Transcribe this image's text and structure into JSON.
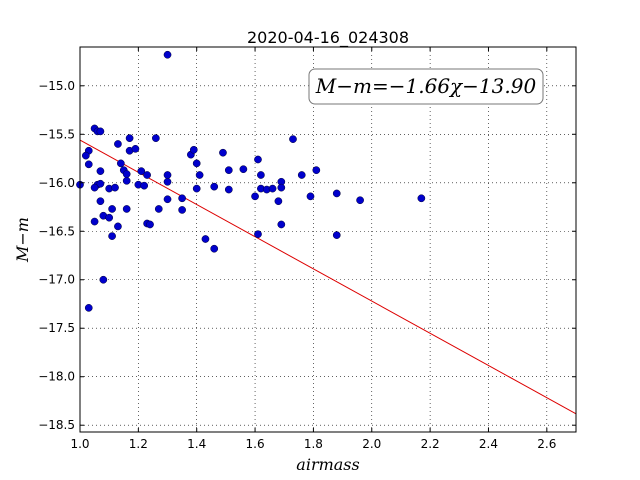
{
  "chart_data": {
    "type": "scatter",
    "title": "2020-04-16_024308",
    "xlabel": "airmass",
    "ylabel": "M−m",
    "xlim": [
      1.0,
      2.7
    ],
    "ylim": [
      -18.57,
      -14.6
    ],
    "y_inverted": true,
    "grid": true,
    "x_ticks": [
      1.0,
      1.2,
      1.4,
      1.6,
      1.8,
      2.0,
      2.2,
      2.4,
      2.6
    ],
    "x_tick_labels": [
      "1.0",
      "1.2",
      "1.4",
      "1.6",
      "1.8",
      "2.0",
      "2.2",
      "2.4",
      "2.6"
    ],
    "y_ticks": [
      -15.0,
      -15.5,
      -16.0,
      -16.5,
      -17.0,
      -17.5,
      -18.0,
      -18.5
    ],
    "y_tick_labels": [
      "−15.0",
      "−15.5",
      "−16.0",
      "−16.5",
      "−17.0",
      "−17.5",
      "−18.0",
      "−18.5"
    ],
    "annotation": "M−m=−1.66χ−13.90",
    "fit": {
      "slope": -1.66,
      "intercept": -13.9,
      "color": "#dd0000"
    },
    "point_color": "#0000cc",
    "points": [
      [
        1.3,
        -14.68
      ],
      [
        1.05,
        -15.44
      ],
      [
        1.06,
        -15.47
      ],
      [
        1.07,
        -15.47
      ],
      [
        1.03,
        -15.67
      ],
      [
        1.02,
        -15.72
      ],
      [
        1.03,
        -15.81
      ],
      [
        1.0,
        -16.02
      ],
      [
        1.06,
        -16.02
      ],
      [
        1.05,
        -16.05
      ],
      [
        1.07,
        -16.01
      ],
      [
        1.07,
        -15.88
      ],
      [
        1.07,
        -16.19
      ],
      [
        1.08,
        -16.34
      ],
      [
        1.1,
        -16.36
      ],
      [
        1.11,
        -16.27
      ],
      [
        1.1,
        -16.06
      ],
      [
        1.12,
        -16.05
      ],
      [
        1.11,
        -16.55
      ],
      [
        1.13,
        -16.45
      ],
      [
        1.05,
        -16.4
      ],
      [
        1.13,
        -15.6
      ],
      [
        1.14,
        -15.8
      ],
      [
        1.15,
        -15.87
      ],
      [
        1.16,
        -15.91
      ],
      [
        1.16,
        -15.98
      ],
      [
        1.16,
        -16.27
      ],
      [
        1.17,
        -15.54
      ],
      [
        1.17,
        -15.67
      ],
      [
        1.19,
        -15.65
      ],
      [
        1.2,
        -16.02
      ],
      [
        1.21,
        -15.88
      ],
      [
        1.22,
        -16.03
      ],
      [
        1.23,
        -15.92
      ],
      [
        1.23,
        -16.42
      ],
      [
        1.24,
        -16.43
      ],
      [
        1.26,
        -15.54
      ],
      [
        1.27,
        -16.27
      ],
      [
        1.3,
        -15.92
      ],
      [
        1.3,
        -15.99
      ],
      [
        1.3,
        -16.17
      ],
      [
        1.35,
        -16.16
      ],
      [
        1.35,
        -16.28
      ],
      [
        1.38,
        -15.71
      ],
      [
        1.39,
        -15.66
      ],
      [
        1.4,
        -15.8
      ],
      [
        1.4,
        -16.06
      ],
      [
        1.41,
        -15.92
      ],
      [
        1.43,
        -16.58
      ],
      [
        1.46,
        -16.04
      ],
      [
        1.46,
        -16.68
      ],
      [
        1.49,
        -15.69
      ],
      [
        1.51,
        -15.87
      ],
      [
        1.51,
        -16.07
      ],
      [
        1.56,
        -15.86
      ],
      [
        1.6,
        -16.14
      ],
      [
        1.61,
        -15.76
      ],
      [
        1.62,
        -15.92
      ],
      [
        1.62,
        -16.06
      ],
      [
        1.61,
        -16.53
      ],
      [
        1.64,
        -16.07
      ],
      [
        1.66,
        -16.06
      ],
      [
        1.68,
        -16.19
      ],
      [
        1.69,
        -15.99
      ],
      [
        1.69,
        -16.05
      ],
      [
        1.69,
        -16.43
      ],
      [
        1.73,
        -15.55
      ],
      [
        1.76,
        -15.92
      ],
      [
        1.79,
        -16.14
      ],
      [
        1.81,
        -15.87
      ],
      [
        1.88,
        -16.11
      ],
      [
        1.88,
        -16.54
      ],
      [
        1.96,
        -16.18
      ],
      [
        2.17,
        -16.16
      ],
      [
        1.08,
        -17.0
      ],
      [
        1.03,
        -17.29
      ]
    ]
  }
}
